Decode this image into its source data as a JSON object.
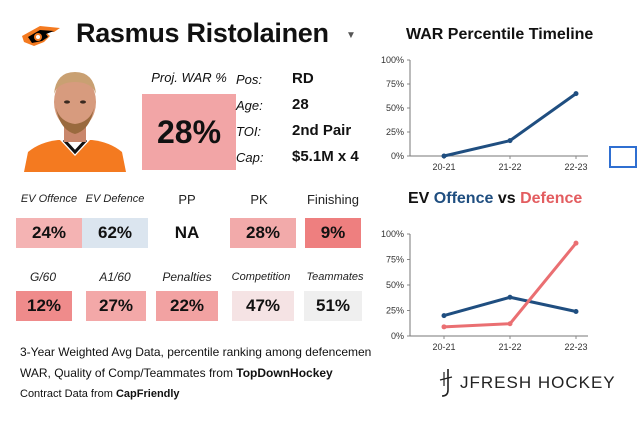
{
  "header": {
    "player_name": "Rasmus Ristolainen",
    "dropdown_icon": "caret-down-icon",
    "team_logo": "flyers-logo"
  },
  "proj_war": {
    "label": "Proj. WAR %",
    "value": "28%"
  },
  "info": [
    {
      "label": "Pos:",
      "value": "RD"
    },
    {
      "label": "Age:",
      "value": "28"
    },
    {
      "label": "TOI:",
      "value": "2nd Pair"
    },
    {
      "label": "Cap:",
      "value": "$5.1M x 4"
    }
  ],
  "stats_row1": [
    {
      "label": "EV Offence",
      "value": "24%",
      "color": "#f4b3b3"
    },
    {
      "label": "EV Defence",
      "value": "62%",
      "color": "#dbe5ef"
    },
    {
      "label": "PP",
      "value": "NA",
      "color": "#ffffff"
    },
    {
      "label": "PK",
      "value": "28%",
      "color": "#f2aaaa"
    },
    {
      "label": "Finishing",
      "value": "9%",
      "color": "#ee7f7f"
    }
  ],
  "stats_row2": [
    {
      "label": "G/60",
      "value": "12%",
      "color": "#ef8b8b"
    },
    {
      "label": "A1/60",
      "value": "27%",
      "color": "#f3a8a8"
    },
    {
      "label": "Penalties",
      "value": "22%",
      "color": "#f2a2a2"
    },
    {
      "label": "Competition",
      "value": "47%",
      "color": "#f5e3e4"
    },
    {
      "label": "Teammates",
      "value": "51%",
      "color": "#efefef"
    }
  ],
  "notes": {
    "line1": "3-Year Weighted Avg Data, percentile ranking among defencemen",
    "line2_prefix": "WAR, Quality of Comp/Teammates from ",
    "line2_source": "TopDownHockey",
    "line3_prefix": "Contract Data from ",
    "line3_source": "CapFriendly"
  },
  "brand": {
    "text": "JFRESH HOCKEY",
    "icon": "jfresh-logo-icon"
  },
  "chart_data": [
    {
      "type": "line",
      "title": "WAR Percentile Timeline",
      "categories": [
        "20-21",
        "21-22",
        "22-23"
      ],
      "ylim": [
        0,
        100
      ],
      "yticks": [
        "0%",
        "25%",
        "50%",
        "75%",
        "100%"
      ],
      "series": [
        {
          "values": [
            0,
            16,
            65
          ],
          "color": "#1f4e80"
        }
      ]
    },
    {
      "type": "line",
      "title_parts": [
        "EV ",
        "Offence",
        " vs ",
        "Defence"
      ],
      "title_colors": [
        "#111111",
        "#1f4e80",
        "#111111",
        "#e35d60"
      ],
      "categories": [
        "20-21",
        "21-22",
        "22-23"
      ],
      "ylim": [
        0,
        100
      ],
      "yticks": [
        "0%",
        "25%",
        "50%",
        "75%",
        "100%"
      ],
      "series": [
        {
          "values": [
            20,
            38,
            24
          ],
          "color": "#1f4e80"
        },
        {
          "values": [
            9,
            12,
            91
          ],
          "color": "#ea6f72"
        }
      ]
    }
  ]
}
